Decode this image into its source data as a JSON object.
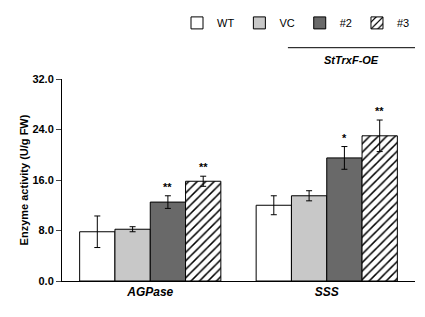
{
  "chart_data": {
    "type": "bar",
    "categories": [
      "AGPase",
      "SSS"
    ],
    "series": [
      {
        "name": "WT",
        "color": "#ffffff",
        "values": [
          7.8,
          12.0
        ],
        "errors": [
          2.5,
          1.5
        ]
      },
      {
        "name": "VC",
        "color": "#c8c8c8",
        "values": [
          8.2,
          13.5
        ],
        "errors": [
          0.4,
          0.8
        ]
      },
      {
        "name": "#2",
        "color": "#696969",
        "values": [
          12.5,
          19.5
        ],
        "errors": [
          1.0,
          1.8
        ]
      },
      {
        "name": "#3",
        "color": "#ffffff",
        "marker": "hatch",
        "values": [
          15.8,
          23.0
        ],
        "errors": [
          0.8,
          2.5
        ]
      }
    ],
    "ylabel": "Enzyme activity (U/g FW)",
    "ylim": [
      0,
      32
    ],
    "yticks": [
      {
        "value": 0,
        "label": "0.0"
      },
      {
        "value": 8,
        "label": "8.0"
      },
      {
        "value": 16,
        "label": "16.0"
      },
      {
        "value": 24,
        "label": "24.0"
      },
      {
        "value": 32,
        "label": "32.0"
      }
    ],
    "grid": false,
    "legend": "top",
    "annotations": [
      {
        "text": "**",
        "series": "#2",
        "category": "AGPase"
      },
      {
        "text": "**",
        "series": "#3",
        "category": "AGPase"
      },
      {
        "text": "*",
        "series": "#2",
        "category": "SSS"
      },
      {
        "text": "**",
        "series": "#3",
        "category": "SSS"
      },
      {
        "text": "StTrxF-OE",
        "series": [
          "#2",
          "#3"
        ]
      }
    ]
  }
}
